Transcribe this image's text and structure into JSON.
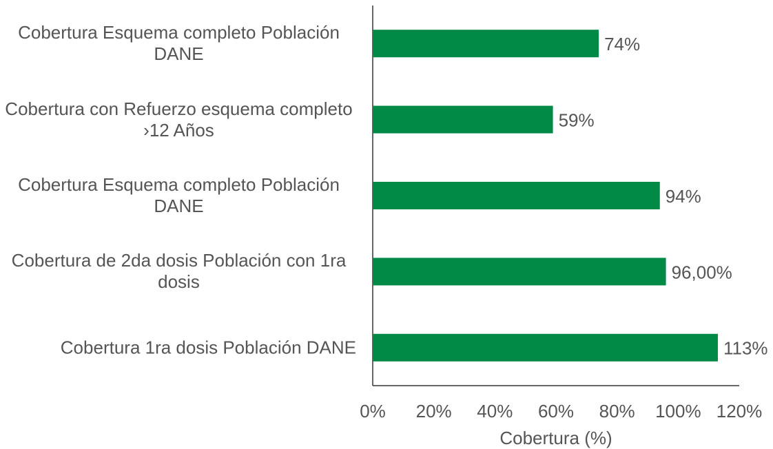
{
  "chart_data": {
    "type": "barh",
    "categories": [
      "Cobertura Esquema completo Población DANE",
      "Cobertura con Refuerzo esquema completo ›12 Años",
      "Cobertura Esquema completo Población DANE",
      "Cobertura de 2da dosis Población con 1ra dosis",
      "Cobertura 1ra dosis Población DANE"
    ],
    "values": [
      74,
      59,
      94,
      96,
      113
    ],
    "value_labels": [
      "74%",
      "59%",
      "94%",
      "96,00%",
      "113%"
    ],
    "color": "#008a45",
    "xlabel": "Cobertura (%)",
    "xlim": [
      0,
      120
    ],
    "xticks": [
      {
        "value": 0,
        "label": "0%"
      },
      {
        "value": 20,
        "label": "20%"
      },
      {
        "value": 40,
        "label": "40%"
      },
      {
        "value": 60,
        "label": "60%"
      },
      {
        "value": 80,
        "label": "80%"
      },
      {
        "value": 100,
        "label": "100%"
      },
      {
        "value": 120,
        "label": "120%"
      }
    ],
    "grid": false
  }
}
